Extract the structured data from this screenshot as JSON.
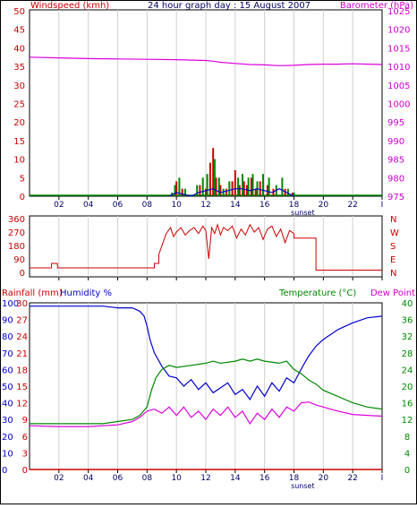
{
  "chart_data": [
    {
      "type": "line",
      "panel": "wind-barometer",
      "title": "24 hour graph day : 15 August 2007",
      "ylabel_left": "Windspeed (kmh)",
      "ylabel_right": "Barometer (hPa)",
      "ylim_left": [
        0,
        50
      ],
      "yticks_left": [
        "0",
        "5",
        "10",
        "15",
        "20",
        "25",
        "30",
        "35",
        "40",
        "45",
        "50"
      ],
      "ylim_right": [
        975,
        1025
      ],
      "yticks_right": [
        "975",
        "980",
        "985",
        "990",
        "995",
        "1000",
        "1005",
        "1010",
        "1015",
        "1020",
        "1025"
      ],
      "xlim": [
        0,
        24
      ],
      "xticks": [
        "02",
        "04",
        "06",
        "08",
        "10",
        "12",
        "14",
        "16",
        "18",
        "20",
        "22",
        "I"
      ],
      "sunset_label": "sunset",
      "series": [
        {
          "name": "Barometer",
          "axis": "right",
          "color": "#dd00dd",
          "x": [
            0,
            2,
            4,
            6,
            8,
            10,
            12,
            12.5,
            13,
            14,
            15,
            16,
            17,
            18,
            19,
            20,
            21,
            22,
            23,
            24
          ],
          "values": [
            1012.5,
            1012.3,
            1012.1,
            1012.0,
            1011.9,
            1011.8,
            1011.6,
            1011.4,
            1011.1,
            1010.8,
            1010.5,
            1010.4,
            1010.2,
            1010.3,
            1010.5,
            1010.6,
            1010.6,
            1010.7,
            1010.6,
            1010.5
          ]
        },
        {
          "name": "Windspeed",
          "axis": "left",
          "style": "bars",
          "color": "#cc0000",
          "x": [
            10.0,
            10.4,
            11.6,
            12.0,
            12.3,
            12.5,
            12.7,
            13.0,
            13.4,
            13.8,
            14.0,
            14.3,
            14.6,
            14.8,
            15.1,
            15.4,
            15.7,
            16.2,
            16.6,
            17.4,
            17.9
          ],
          "values": [
            4,
            2,
            3,
            2,
            9,
            13,
            5,
            3,
            2,
            4,
            7,
            3,
            4,
            3,
            5,
            2,
            4,
            3,
            2,
            2,
            1
          ]
        },
        {
          "name": "Wind gust",
          "axis": "left",
          "style": "bars",
          "color": "#008800",
          "x": [
            9.7,
            9.9,
            10.2,
            10.6,
            11.4,
            11.8,
            12.1,
            12.6,
            12.9,
            13.2,
            13.6,
            14.2,
            14.5,
            14.9,
            15.2,
            15.5,
            15.9,
            16.3,
            16.8,
            17.2,
            17.6,
            18.0
          ],
          "values": [
            1,
            3,
            5,
            2,
            3,
            5,
            6,
            10,
            5,
            2,
            4,
            5,
            6,
            5,
            6,
            4,
            6,
            5,
            3,
            5,
            2,
            1
          ]
        },
        {
          "name": "Wind average",
          "axis": "left",
          "style": "line",
          "color": "#0000cc",
          "x": [
            9.5,
            10.0,
            10.5,
            11.0,
            11.5,
            12.0,
            12.5,
            13.0,
            13.5,
            14.0,
            14.5,
            15.0,
            15.5,
            16.0,
            16.5,
            17.0,
            17.5,
            18.0
          ],
          "values": [
            0,
            1,
            0.5,
            0,
            1,
            1.5,
            2,
            1,
            1.5,
            2,
            2,
            1.5,
            2,
            1.5,
            1,
            2,
            1,
            0
          ]
        }
      ]
    },
    {
      "type": "line",
      "panel": "wind-direction",
      "yticks_left": [
        "0",
        "90",
        "180",
        "270",
        "360"
      ],
      "ylim": [
        0,
        360
      ],
      "compass_labels": [
        "N",
        "W",
        "S",
        "E",
        "N"
      ],
      "series": [
        {
          "name": "Wind direction",
          "color": "#cc0000",
          "x": [
            0,
            1.5,
            1.5,
            1.9,
            1.9,
            2.3,
            2.3,
            8.5,
            8.5,
            8.8,
            8.8,
            9.3,
            9.6,
            9.8,
            10.0,
            10.3,
            10.6,
            10.9,
            11.2,
            11.5,
            11.8,
            12.0,
            12.2,
            12.4,
            12.6,
            12.8,
            13.0,
            13.2,
            13.5,
            13.8,
            14.1,
            14.4,
            14.7,
            15.0,
            15.3,
            15.6,
            15.9,
            16.2,
            16.5,
            16.8,
            17.1,
            17.4,
            17.7,
            18.0,
            18.0,
            19.5,
            19.5,
            24
          ],
          "values": [
            30,
            30,
            60,
            60,
            30,
            30,
            30,
            30,
            60,
            60,
            120,
            260,
            300,
            240,
            270,
            300,
            250,
            280,
            300,
            260,
            310,
            280,
            90,
            300,
            260,
            320,
            250,
            300,
            280,
            310,
            230,
            290,
            250,
            320,
            270,
            300,
            220,
            290,
            310,
            240,
            290,
            200,
            280,
            260,
            230,
            230,
            15,
            15
          ]
        }
      ]
    },
    {
      "type": "line",
      "panel": "temp-humidity",
      "ylabel_left": "Rainfall (mm)",
      "ylabel_humidity": "Humidity %",
      "ylabel_right": "Temperature (°C)",
      "ylabel_dew": "Dew Point",
      "yticks_humidity": [
        "0",
        "10",
        "20",
        "30",
        "40",
        "50",
        "60",
        "70",
        "80",
        "90",
        "100"
      ],
      "yticks_rain": [
        "0",
        "3",
        "6",
        "9",
        "12",
        "15",
        "18",
        "21",
        "24",
        "27",
        "30"
      ],
      "ylim_left": [
        0,
        30
      ],
      "ylim_right": [
        0,
        40
      ],
      "yticks_right": [
        "0",
        "4",
        "8",
        "12",
        "16",
        "20",
        "24",
        "28",
        "32",
        "36",
        "40"
      ],
      "xticks": [
        "02",
        "04",
        "06",
        "08",
        "10",
        "12",
        "14",
        "16",
        "18",
        "20",
        "22",
        "I"
      ],
      "sunset_label": "sunset",
      "series": [
        {
          "name": "Humidity %",
          "axis": "humidity",
          "color": "#0000cc",
          "x": [
            0,
            2,
            4,
            5,
            6,
            7,
            7.5,
            7.8,
            8.0,
            8.2,
            8.5,
            9.0,
            9.5,
            10,
            10.5,
            11,
            11.5,
            12,
            12.5,
            13,
            13.5,
            14,
            14.5,
            15,
            15.5,
            16,
            16.5,
            17,
            17.5,
            18,
            18.3,
            18.6,
            19,
            19.5,
            20,
            21,
            22,
            23,
            24
          ],
          "values": [
            98,
            98,
            98,
            98,
            97,
            97,
            95,
            92,
            86,
            78,
            70,
            62,
            56,
            55,
            50,
            54,
            48,
            52,
            46,
            49,
            52,
            45,
            48,
            42,
            50,
            44,
            52,
            47,
            55,
            52,
            57,
            62,
            68,
            74,
            78,
            84,
            88,
            91,
            92
          ]
        },
        {
          "name": "Temperature",
          "axis": "right",
          "color": "#008800",
          "x": [
            0,
            2,
            4,
            5,
            6,
            7,
            7.5,
            8.0,
            8.3,
            8.6,
            9.0,
            9.5,
            10,
            11,
            12,
            12.5,
            13,
            14,
            14.5,
            15,
            15.5,
            16,
            17,
            17.5,
            18,
            18.5,
            19,
            19.5,
            20,
            21,
            22,
            23,
            24
          ],
          "values": [
            11,
            11,
            11,
            11,
            11.5,
            12,
            13,
            15,
            19,
            22,
            24,
            25,
            24.5,
            25,
            25.5,
            26,
            25.5,
            26,
            26.5,
            26,
            26.5,
            26,
            25.5,
            26,
            24,
            23,
            21.5,
            20.5,
            19,
            17.5,
            16,
            15,
            14.5
          ]
        },
        {
          "name": "Dew Point",
          "axis": "right",
          "color": "#dd00dd",
          "x": [
            0,
            2,
            4,
            5,
            6,
            7,
            7.5,
            8.0,
            8.5,
            9.0,
            9.5,
            10,
            10.5,
            11,
            11.5,
            12,
            12.5,
            13,
            13.5,
            14,
            14.5,
            15,
            15.5,
            16,
            16.5,
            17,
            17.5,
            18,
            18.5,
            19,
            19.5,
            20,
            21,
            22,
            23,
            24
          ],
          "values": [
            10.5,
            10.3,
            10.3,
            10.5,
            10.7,
            11.5,
            12.5,
            14,
            14.5,
            13.5,
            15,
            13,
            15,
            12.5,
            14,
            12,
            14.5,
            13,
            15,
            12.5,
            14,
            11,
            13.5,
            12,
            14.5,
            12.5,
            15,
            14,
            16,
            16.2,
            15.5,
            15,
            14,
            13.2,
            13,
            12.8
          ]
        },
        {
          "name": "Rainfall",
          "axis": "left",
          "color": "#cc0000",
          "x": [
            0,
            24
          ],
          "values": [
            0,
            0
          ]
        }
      ]
    }
  ]
}
